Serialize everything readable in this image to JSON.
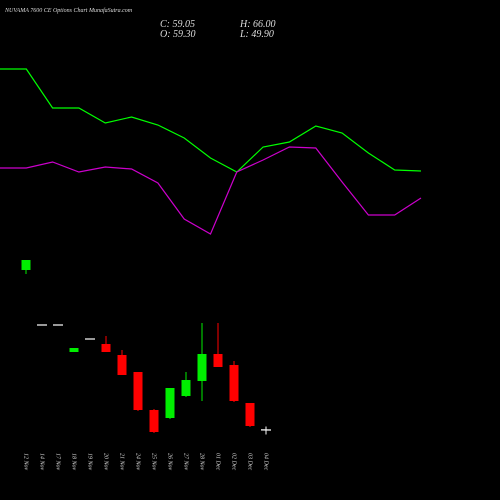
{
  "chart_data": [
    {
      "type": "line",
      "ylim": [
        0,
        100
      ],
      "series": [
        {
          "color": "#00ff00",
          "values": [
            90.5,
            90.5,
            71,
            71,
            63.5,
            66.5,
            62.5,
            56,
            46,
            39,
            51.5,
            54,
            62,
            58.5,
            48.5,
            40,
            39.5
          ]
        },
        {
          "color": "#cc00cc",
          "values": [
            41,
            41,
            44,
            39,
            41.5,
            40.5,
            33.5,
            15.5,
            8,
            39,
            45,
            51.5,
            51,
            34,
            17.5,
            17.5,
            26
          ]
        }
      ]
    },
    {
      "type": "candlestick",
      "title": "NUVAMA 7600  CE Options  Chart MunafaSutra.com",
      "header": [
        "C: 59.05",
        "H: 66.00",
        "O: 59.30",
        "L: 49.90"
      ],
      "categories": [
        "12 Nov",
        "14 Nov",
        "17 Nov",
        "18 Nov",
        "19 Nov",
        "20 Nov",
        "21 Nov",
        "24 Nov",
        "25 Nov",
        "26 Nov",
        "27 Nov",
        "28 Nov",
        "01 Dec",
        "02 Dec",
        "03 Dec",
        "04 Dec"
      ],
      "open": [
        379,
        269,
        269,
        215,
        241,
        231,
        209,
        175,
        99,
        83,
        127,
        157,
        211,
        189,
        113,
        59.3
      ],
      "high": [
        399,
        269,
        269,
        223,
        241,
        247,
        219,
        175,
        101,
        143,
        175,
        273,
        273,
        197,
        113,
        66
      ],
      "low": [
        371,
        269,
        269,
        215,
        241,
        215,
        169,
        97,
        53,
        81,
        125,
        117,
        185,
        115,
        65,
        49.9
      ],
      "close": [
        399,
        269,
        269,
        223,
        241,
        215,
        169,
        99,
        55,
        143,
        159,
        211,
        185,
        117,
        67,
        59.05
      ],
      "ylim": [
        19,
        419
      ],
      "up_color": "#00ee00",
      "down_color": "#ff0000",
      "flat_color": "#ffffff"
    }
  ]
}
